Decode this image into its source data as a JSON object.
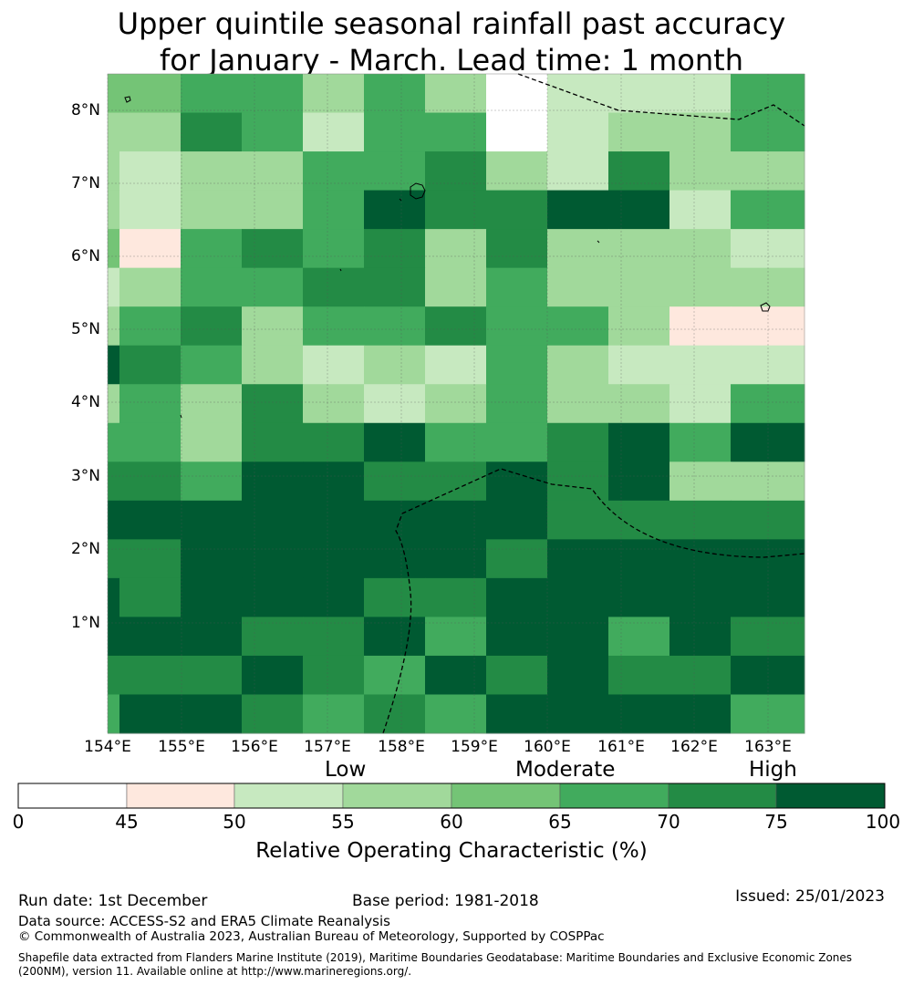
{
  "title": {
    "line1": "Upper quintile seasonal rainfall past accuracy",
    "line2": "for January - March. Lead time: 1 month"
  },
  "map": {
    "lat_labels": [
      "8°N",
      "7°N",
      "6°N",
      "5°N",
      "4°N",
      "3°N",
      "2°N",
      "1°N"
    ],
    "lon_labels": [
      "154°E",
      "155°E",
      "156°E",
      "157°E",
      "158°E",
      "159°E",
      "160°E",
      "161°E",
      "162°E",
      "163°E"
    ],
    "grid_levels": [
      [
        4,
        4,
        5,
        5,
        3,
        5,
        3,
        0,
        2,
        2,
        2,
        5
      ],
      [
        3,
        3,
        6,
        5,
        2,
        5,
        5,
        0,
        2,
        3,
        3,
        5
      ],
      [
        3,
        2,
        3,
        3,
        5,
        5,
        6,
        3,
        2,
        6,
        3,
        3
      ],
      [
        3,
        2,
        3,
        3,
        5,
        7,
        6,
        6,
        7,
        7,
        2,
        5
      ],
      [
        4,
        1,
        5,
        6,
        5,
        6,
        3,
        6,
        3,
        3,
        3,
        2
      ],
      [
        2,
        3,
        5,
        5,
        6,
        6,
        3,
        5,
        3,
        3,
        3,
        3
      ],
      [
        3,
        5,
        6,
        3,
        5,
        5,
        6,
        5,
        5,
        3,
        1,
        1
      ],
      [
        7,
        6,
        5,
        3,
        2,
        3,
        2,
        5,
        3,
        2,
        2,
        2
      ],
      [
        3,
        5,
        3,
        6,
        3,
        2,
        3,
        5,
        3,
        3,
        2,
        5
      ],
      [
        5,
        5,
        3,
        6,
        6,
        7,
        5,
        5,
        6,
        7,
        5,
        7
      ],
      [
        6,
        6,
        5,
        7,
        7,
        6,
        6,
        7,
        6,
        7,
        3,
        3
      ],
      [
        7,
        7,
        7,
        7,
        7,
        7,
        7,
        7,
        6,
        6,
        6,
        6
      ],
      [
        6,
        6,
        7,
        7,
        7,
        7,
        7,
        6,
        7,
        7,
        7,
        7
      ],
      [
        7,
        6,
        7,
        7,
        7,
        6,
        6,
        7,
        7,
        7,
        7,
        7
      ],
      [
        7,
        7,
        7,
        6,
        6,
        7,
        5,
        7,
        7,
        5,
        7,
        6
      ],
      [
        6,
        6,
        6,
        7,
        6,
        5,
        7,
        6,
        7,
        6,
        6,
        7
      ],
      [
        5,
        7,
        7,
        6,
        5,
        6,
        5,
        7,
        7,
        7,
        7,
        5
      ]
    ]
  },
  "tiers": {
    "low": "Low",
    "moderate": "Moderate",
    "high": "High"
  },
  "legend": {
    "ticks": [
      "0",
      "45",
      "50",
      "55",
      "60",
      "65",
      "70",
      "75",
      "100"
    ],
    "colors": [
      "#ffffff",
      "#fee8de",
      "#c7e9c0",
      "#a1d99b",
      "#74c476",
      "#41ab5d",
      "#238b45",
      "#005a32"
    ],
    "label": "Relative Operating Characteristic (%)"
  },
  "footer": {
    "run_date": "Run date: 1st December",
    "base_period": "Base period: 1981-2018",
    "issued": "Issued: 25/01/2023",
    "data_source": "Data source: ACCESS-S2 and ERA5 Climate Reanalysis",
    "copyright": "© Commonwealth of Australia 2023, Australian Bureau of Meteorology, Supported by COSPPac",
    "shapefile": "Shapefile data extracted from Flanders Marine Institute (2019), Maritime Boundaries Geodatabase: Maritime Boundaries and Exclusive Economic Zones (200NM), version 11. Available online at http://www.marineregions.org/."
  }
}
